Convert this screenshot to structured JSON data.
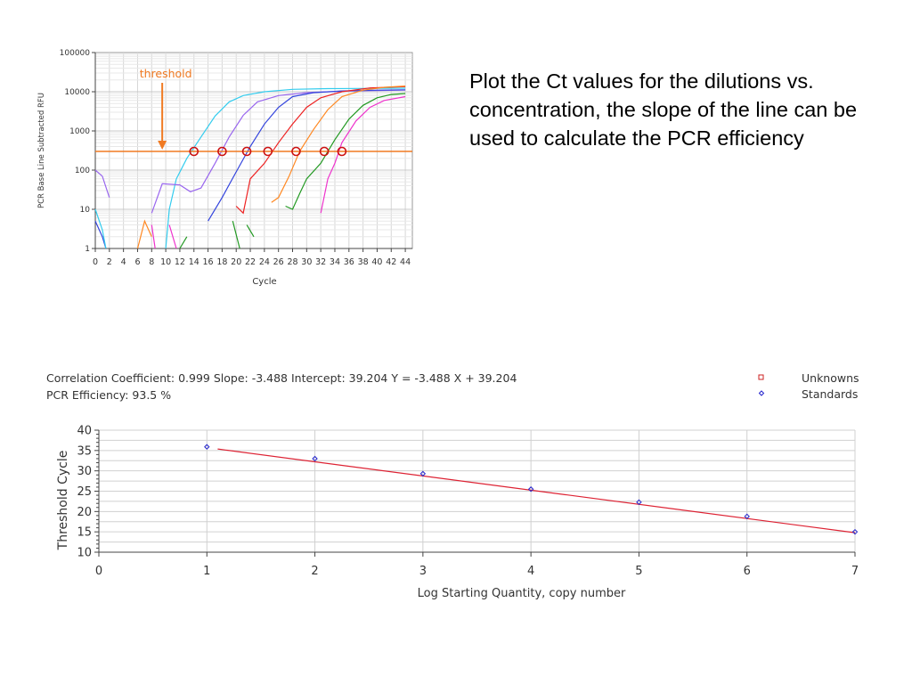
{
  "description_text": "Plot the Ct values for the dilutions vs. concentration, the slope of the line can be used to calculate the PCR efficiency",
  "chart_data": [
    {
      "type": "line",
      "title": "",
      "ylabel": "PCR Base Line Subtracted RFU",
      "xlabel": "Cycle",
      "yscale": "log",
      "ylim": [
        1,
        100000
      ],
      "xlim": [
        0,
        45
      ],
      "y_ticks": [
        "1",
        "10",
        "100",
        "1000",
        "10000",
        "100000"
      ],
      "x_ticks": [
        "0",
        "2",
        "4",
        "6",
        "8",
        "10",
        "12",
        "14",
        "16",
        "18",
        "20",
        "22",
        "24",
        "26",
        "28",
        "30",
        "32",
        "34",
        "36",
        "38",
        "40",
        "42",
        "44"
      ],
      "grid": true,
      "annotation": "threshold",
      "threshold": 300,
      "threshold_color": "#f07a22",
      "ct_markers": [
        14,
        18,
        21.5,
        24.5,
        28.5,
        32.5,
        35
      ],
      "series": [
        {
          "color": "#33ccee",
          "points": [
            [
              10,
              1
            ],
            [
              10.5,
              10
            ],
            [
              11.5,
              60
            ],
            [
              13,
              200
            ],
            [
              15,
              700
            ],
            [
              17,
              2400
            ],
            [
              19,
              5500
            ],
            [
              21,
              8000
            ],
            [
              24,
              10000
            ],
            [
              28,
              11500
            ],
            [
              33,
              12000
            ],
            [
              40,
              12200
            ],
            [
              44,
              12300
            ]
          ]
        },
        {
          "color": "#9966ee",
          "points": [
            [
              8,
              8
            ],
            [
              9.5,
              45
            ],
            [
              12,
              42
            ],
            [
              13.5,
              28
            ],
            [
              15,
              35
            ],
            [
              17,
              150
            ],
            [
              19,
              700
            ],
            [
              21,
              2500
            ],
            [
              23,
              5500
            ],
            [
              26,
              8000
            ],
            [
              30,
              9500
            ],
            [
              36,
              10500
            ],
            [
              44,
              11000
            ]
          ]
        },
        {
          "color": "#3344dd",
          "points": [
            [
              16,
              5
            ],
            [
              18,
              20
            ],
            [
              20,
              90
            ],
            [
              22,
              400
            ],
            [
              24,
              1500
            ],
            [
              26,
              4000
            ],
            [
              28,
              7500
            ],
            [
              31,
              9500
            ],
            [
              35,
              10500
            ],
            [
              40,
              11000
            ],
            [
              44,
              11200
            ]
          ]
        },
        {
          "color": "#ee2222",
          "points": [
            [
              20,
              12
            ],
            [
              21,
              8
            ],
            [
              22,
              60
            ],
            [
              24,
              150
            ],
            [
              26,
              500
            ],
            [
              28,
              1500
            ],
            [
              30,
              4000
            ],
            [
              32,
              7000
            ],
            [
              35,
              10000
            ],
            [
              39,
              12500
            ],
            [
              44,
              13500
            ]
          ]
        },
        {
          "color": "#ff8822",
          "points": [
            [
              25,
              15
            ],
            [
              26,
              20
            ],
            [
              27.5,
              70
            ],
            [
              29,
              300
            ],
            [
              31,
              1100
            ],
            [
              33,
              3500
            ],
            [
              35,
              7500
            ],
            [
              38,
              11000
            ],
            [
              41,
              13000
            ],
            [
              44,
              14000
            ]
          ]
        },
        {
          "color": "#229922",
          "points": [
            [
              27,
              12
            ],
            [
              28,
              10
            ],
            [
              29,
              25
            ],
            [
              30,
              60
            ],
            [
              32,
              150
            ],
            [
              34,
              600
            ],
            [
              36,
              2000
            ],
            [
              38,
              4500
            ],
            [
              40,
              7000
            ],
            [
              42,
              8500
            ],
            [
              44,
              9000
            ]
          ]
        },
        {
          "color": "#ee33cc",
          "points": [
            [
              32,
              8
            ],
            [
              33,
              60
            ],
            [
              34,
              150
            ],
            [
              35,
              500
            ],
            [
              37,
              1800
            ],
            [
              39,
              4000
            ],
            [
              41,
              6000
            ],
            [
              44,
              7500
            ]
          ]
        },
        {
          "color": "#9966ee",
          "points": [
            [
              0,
              100
            ],
            [
              1,
              70
            ],
            [
              2,
              20
            ]
          ]
        },
        {
          "color": "#3344dd",
          "points": [
            [
              0,
              5
            ],
            [
              1,
              2
            ],
            [
              1.5,
              1
            ]
          ]
        },
        {
          "color": "#33ccee",
          "points": [
            [
              0,
              10
            ],
            [
              1,
              3
            ],
            [
              1.5,
              1
            ]
          ]
        },
        {
          "color": "#ff8822",
          "points": [
            [
              6,
              1
            ],
            [
              7,
              5
            ],
            [
              8,
              2
            ]
          ]
        },
        {
          "color": "#ee33cc",
          "points": [
            [
              8,
              4
            ],
            [
              8.5,
              1
            ]
          ]
        },
        {
          "color": "#ee33cc",
          "points": [
            [
              10.5,
              4
            ],
            [
              11.5,
              1
            ]
          ]
        },
        {
          "color": "#229922",
          "points": [
            [
              12,
              1
            ],
            [
              13,
              2
            ]
          ]
        },
        {
          "color": "#229922",
          "points": [
            [
              19.5,
              5
            ],
            [
              20.5,
              1
            ]
          ]
        },
        {
          "color": "#229922",
          "points": [
            [
              21.5,
              4
            ],
            [
              22.5,
              2
            ]
          ]
        }
      ]
    },
    {
      "type": "scatter",
      "xlabel": "Log Starting Quantity, copy number",
      "ylabel": "Threshold Cycle",
      "xlim": [
        0,
        7
      ],
      "ylim": [
        10,
        40
      ],
      "x_ticks": [
        "0",
        "1",
        "2",
        "3",
        "4",
        "5",
        "6",
        "7"
      ],
      "y_ticks": [
        "10",
        "15",
        "20",
        "25",
        "30",
        "35",
        "40"
      ],
      "grid": true,
      "stats_line1": "Correlation Coefficient: 0.999   Slope: -3.488   Intercept: 39.204   Y = -3.488 X + 39.204",
      "stats_line2": "PCR Efficiency: 93.5 %",
      "legend": [
        {
          "label": "Unknowns",
          "marker": "square",
          "color": "#cc2222"
        },
        {
          "label": "Standards",
          "marker": "diamond",
          "color": "#2222cc"
        }
      ],
      "legend_position": "top-right",
      "standards": {
        "x": [
          1,
          2,
          3,
          4,
          5,
          6,
          7
        ],
        "y": [
          35.9,
          33,
          29.3,
          25.5,
          22.3,
          18.8,
          15
        ]
      },
      "fit_line": {
        "slope": -3.488,
        "intercept": 39.204,
        "x_range": [
          1.1,
          7
        ],
        "color": "#dd2233"
      }
    }
  ]
}
